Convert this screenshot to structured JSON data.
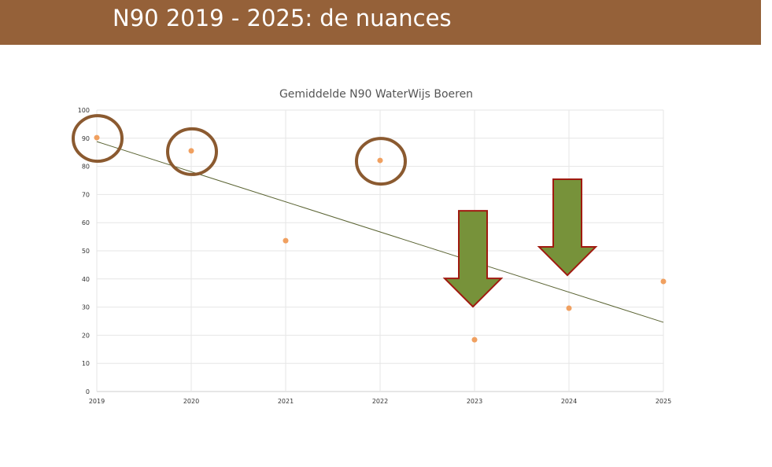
{
  "header": {
    "title": "N90 2019 - 2025: de nuances",
    "color": "#956139"
  },
  "chart_data": {
    "type": "scatter",
    "title": "Gemiddelde N90 WaterWijs Boeren",
    "xlabel": "",
    "ylabel": "",
    "x": [
      2019,
      2020,
      2021,
      2022,
      2023,
      2024,
      2025
    ],
    "y": [
      90.2,
      85.5,
      53.6,
      82.1,
      18.4,
      29.6,
      39.1
    ],
    "xlim": [
      2019,
      2025
    ],
    "ylim": [
      0,
      100
    ],
    "yticks": [
      0,
      10,
      20,
      30,
      40,
      50,
      60,
      70,
      80,
      90,
      100
    ],
    "xticks": [
      2019,
      2020,
      2021,
      2022,
      2023,
      2024,
      2025
    ],
    "trendline": {
      "type": "linear",
      "start": [
        2019,
        88.8
      ],
      "end": [
        2025,
        24.6
      ],
      "color": "#5a6332"
    },
    "point_color": "#f0a060",
    "grid": true,
    "annotations": {
      "circled_years": [
        2019,
        2020,
        2022
      ],
      "circle_color": "#8b5a30",
      "down_arrows_at": [
        2023,
        2024
      ],
      "arrow_fill": "#77923a",
      "arrow_stroke": "#a01a10"
    }
  }
}
